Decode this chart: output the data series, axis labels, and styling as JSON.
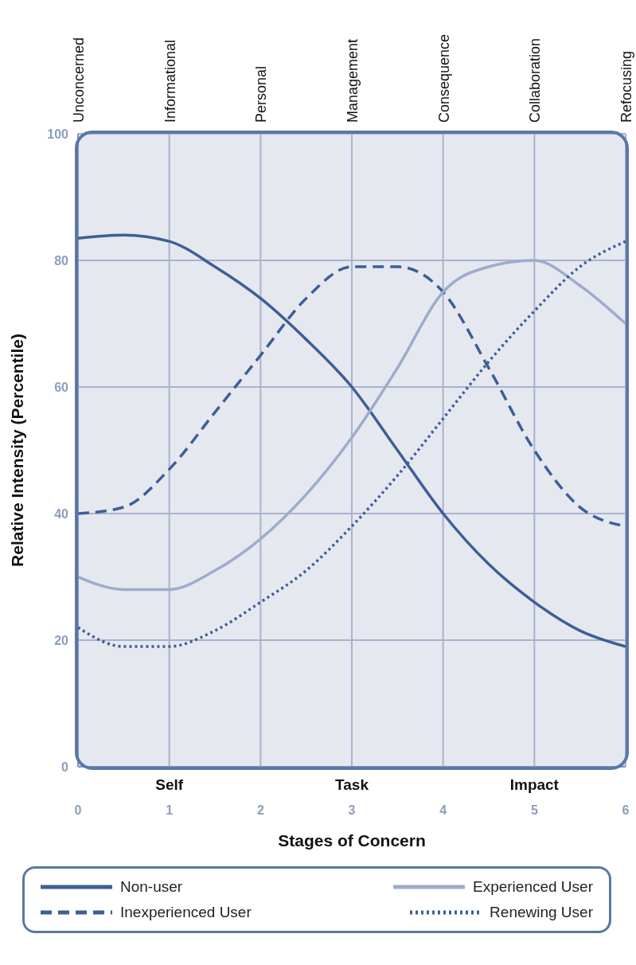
{
  "chart_data": {
    "type": "line",
    "xlabel": "Stages of Concern",
    "ylabel": "Relative Intensity (Percentile)",
    "x": [
      0,
      0.5,
      1,
      1.5,
      2,
      2.5,
      3,
      3.5,
      4,
      4.5,
      5,
      5.5,
      6
    ],
    "series": [
      {
        "name": "Non-user",
        "color": "#3d5f96",
        "line_style": "solid",
        "values": [
          83.5,
          84,
          83,
          79,
          74,
          67.5,
          60,
          50,
          40,
          32,
          26,
          21.5,
          19
        ]
      },
      {
        "name": "Inexperienced User",
        "color": "#3d5f96",
        "line_style": "dashed",
        "values": [
          40,
          41,
          47,
          56,
          65,
          74,
          79,
          79,
          75,
          63,
          50,
          41,
          38
        ]
      },
      {
        "name": "Experienced User",
        "color": "#9eaccb",
        "line_style": "solid",
        "values": [
          30,
          28,
          28,
          31,
          36,
          43,
          52,
          63,
          75,
          79,
          80,
          76,
          70
        ]
      },
      {
        "name": "Renewing User",
        "color": "#3d5f96",
        "line_style": "dotted",
        "values": [
          22,
          19,
          19,
          21.5,
          26,
          31,
          38,
          46,
          55,
          64,
          72,
          79,
          83
        ]
      }
    ],
    "xlim": [
      0,
      6
    ],
    "xticks": [
      0,
      1,
      2,
      3,
      4,
      5,
      6
    ],
    "ylim": [
      0,
      100
    ],
    "yticks": [
      0,
      20,
      40,
      60,
      80,
      100
    ],
    "annotations": [
      "Unconcerned",
      "Informational",
      "Personal",
      "Management",
      "Consequence",
      "Collaboration",
      "Refocusing",
      "Self",
      "Task",
      "Impact"
    ],
    "grid": true,
    "legend": "bottom",
    "marker": "none"
  }
}
